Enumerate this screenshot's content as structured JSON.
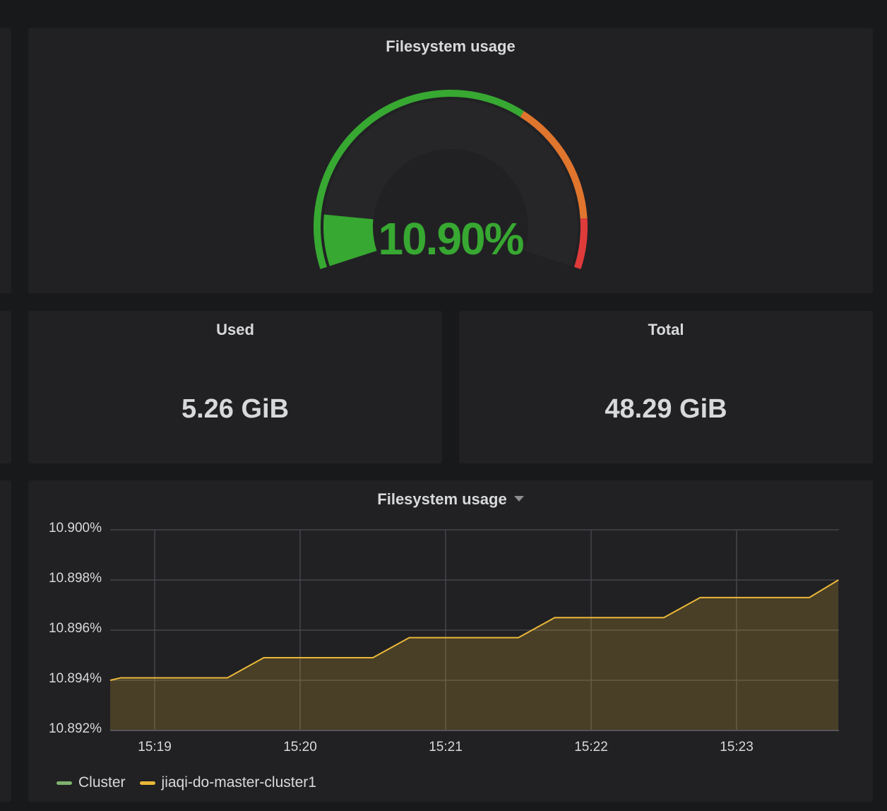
{
  "colors": {
    "background": "#18191b",
    "panel": "#212124",
    "gauge_ok": "#37a831",
    "gauge_warn": "#e0752d",
    "gauge_crit": "#e03b3b",
    "series_cluster": "#7eb26d",
    "series_node": "#eab839"
  },
  "gauge_panel": {
    "title": "Filesystem usage",
    "value": 10.9,
    "value_text": "10.90%",
    "min": 0,
    "max": 100,
    "thresholds": [
      65,
      90
    ]
  },
  "used_panel": {
    "title": "Used",
    "value": "5.26 GiB"
  },
  "total_panel": {
    "title": "Total",
    "value": "48.29 GiB"
  },
  "graph_panel": {
    "title": "Filesystem usage",
    "menu_icon": "caret-down-icon",
    "legend": [
      {
        "label": "Cluster",
        "color": "#7eb26d"
      },
      {
        "label": "jiaqi-do-master-cluster1",
        "color": "#eab839"
      }
    ]
  },
  "chart_data": {
    "type": "area",
    "title": "Filesystem usage",
    "xlabel": "",
    "ylabel": "",
    "x_ticks": [
      "15:19",
      "15:20",
      "15:21",
      "15:22",
      "15:23"
    ],
    "y_ticks": [
      "10.900%",
      "10.898%",
      "10.896%",
      "10.894%",
      "10.892%"
    ],
    "ylim": [
      10.892,
      10.9
    ],
    "grid": true,
    "legend_position": "bottom",
    "series": [
      {
        "name": "jiaqi-do-master-cluster1",
        "color": "#eab839",
        "x": [
          "15:18:41",
          "15:18:46",
          "15:19:30",
          "15:19:45",
          "15:20:30",
          "15:20:45",
          "15:21:30",
          "15:21:45",
          "15:22:30",
          "15:22:45",
          "15:23:30",
          "15:23:42"
        ],
        "values": [
          10.894,
          10.8941,
          10.8941,
          10.8949,
          10.8949,
          10.8957,
          10.8957,
          10.8965,
          10.8965,
          10.8973,
          10.8973,
          10.898
        ]
      },
      {
        "name": "Cluster",
        "color": "#7eb26d",
        "x": [],
        "values": []
      }
    ]
  }
}
